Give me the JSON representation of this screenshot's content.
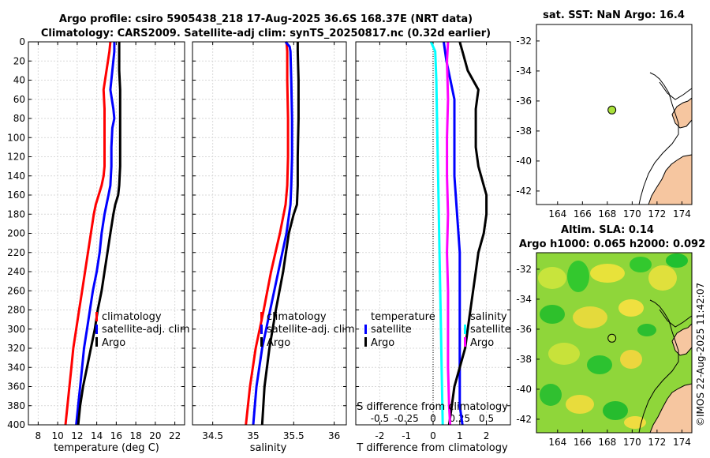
{
  "title": {
    "line1": "Argo profile: csiro 5905438_218 17-Aug-2025 36.6S 168.37E (NRT data)",
    "line2": "Climatology: CARS2009. Satellite-adj clim: synTS_20250817.nc (0.32d earlier)"
  },
  "depth_ticks": [
    0,
    20,
    40,
    60,
    80,
    100,
    120,
    140,
    160,
    180,
    200,
    220,
    240,
    260,
    280,
    300,
    320,
    340,
    360,
    380,
    400
  ],
  "depth_range": [
    0,
    400
  ],
  "chart_data": [
    {
      "type": "line",
      "name": "temperature",
      "xlabel": "temperature (deg C)",
      "xlim": [
        7,
        23
      ],
      "xticks": [
        8,
        10,
        12,
        14,
        16,
        18,
        20,
        22
      ],
      "ylim": [
        400,
        0
      ],
      "legend": [
        "climatology",
        "satellite-adj. clim",
        "Argo"
      ],
      "series": [
        {
          "name": "climatology",
          "color": "#ff0000",
          "depth": [
            0,
            10,
            30,
            50,
            70,
            90,
            110,
            130,
            140,
            150,
            160,
            170,
            180,
            200,
            220,
            240,
            260,
            280,
            300,
            320,
            340,
            360,
            380,
            400
          ],
          "values": [
            15.4,
            15.3,
            15.0,
            14.7,
            14.8,
            14.8,
            14.8,
            14.8,
            14.7,
            14.5,
            14.2,
            13.9,
            13.7,
            13.4,
            13.1,
            12.8,
            12.5,
            12.2,
            11.9,
            11.6,
            11.4,
            11.2,
            11.0,
            10.8
          ]
        },
        {
          "name": "satellite-adj. clim",
          "color": "#0000ff",
          "depth": [
            0,
            10,
            30,
            50,
            70,
            80,
            90,
            110,
            130,
            150,
            160,
            170,
            180,
            200,
            220,
            240,
            260,
            280,
            300,
            320,
            340,
            360,
            380,
            400
          ],
          "values": [
            15.8,
            15.8,
            15.6,
            15.4,
            15.7,
            15.8,
            15.6,
            15.5,
            15.5,
            15.4,
            15.2,
            15.0,
            14.8,
            14.5,
            14.3,
            14.0,
            13.6,
            13.3,
            13.0,
            12.7,
            12.5,
            12.3,
            12.1,
            11.9
          ]
        },
        {
          "name": "Argo",
          "color": "#000000",
          "depth": [
            0,
            10,
            30,
            50,
            70,
            90,
            110,
            130,
            150,
            160,
            170,
            180,
            200,
            220,
            240,
            260,
            280,
            300,
            320,
            340,
            360,
            380,
            400
          ],
          "values": [
            16.3,
            16.3,
            16.3,
            16.4,
            16.4,
            16.4,
            16.4,
            16.4,
            16.3,
            16.2,
            15.9,
            15.7,
            15.4,
            15.1,
            14.8,
            14.5,
            14.1,
            13.8,
            13.4,
            13.0,
            12.6,
            12.3,
            12.1
          ]
        }
      ]
    },
    {
      "type": "line",
      "name": "salinity",
      "xlabel": "salinity",
      "xlim": [
        34.25,
        36.15
      ],
      "xticks": [
        34.5,
        35,
        35.5,
        36
      ],
      "xtick_labels": [
        "34.5",
        "35",
        "35.5",
        "36"
      ],
      "ylim": [
        400,
        0
      ],
      "legend": [
        "climatology",
        "satellite-adj. clim",
        "Argo"
      ],
      "series": [
        {
          "name": "climatology",
          "color": "#ff0000",
          "depth": [
            0,
            10,
            40,
            80,
            120,
            150,
            170,
            200,
            240,
            280,
            320,
            360,
            400
          ],
          "values": [
            35.41,
            35.42,
            35.42,
            35.43,
            35.43,
            35.42,
            35.4,
            35.33,
            35.22,
            35.13,
            35.03,
            34.96,
            34.91
          ]
        },
        {
          "name": "satellite-adj. clim",
          "color": "#0000ff",
          "depth": [
            0,
            5,
            10,
            40,
            80,
            120,
            150,
            170,
            200,
            240,
            280,
            320,
            360,
            400
          ],
          "values": [
            35.4,
            35.45,
            35.46,
            35.47,
            35.48,
            35.48,
            35.47,
            35.46,
            35.41,
            35.31,
            35.21,
            35.11,
            35.04,
            35.0
          ]
        },
        {
          "name": "Argo",
          "color": "#000000",
          "depth": [
            0,
            10,
            40,
            80,
            120,
            150,
            170,
            180,
            200,
            240,
            280,
            320,
            360,
            400
          ],
          "values": [
            35.55,
            35.55,
            35.56,
            35.56,
            35.55,
            35.55,
            35.54,
            35.5,
            35.44,
            35.37,
            35.28,
            35.2,
            35.14,
            35.11
          ]
        }
      ]
    },
    {
      "type": "line",
      "name": "difference from climatology",
      "xlabel": "T difference from climatology",
      "xlim": [
        -2.9,
        2.9
      ],
      "xticks": [
        -2,
        -1,
        0,
        1,
        2
      ],
      "top_axis_label": "S difference from climatology",
      "top_xticks": [
        -0.5,
        -0.25,
        0,
        0.25,
        0.5
      ],
      "top_xtick_labels": [
        "-0.5",
        "-0.25",
        "0",
        "0.25",
        "0.5"
      ],
      "ylim": [
        400,
        0
      ],
      "legend_T": [
        "temperature",
        "satellite",
        "Argo"
      ],
      "legend_S": [
        "salinity",
        "satellite",
        "Argo"
      ],
      "series": [
        {
          "name": "temperature satellite",
          "color": "#0000ff",
          "depth": [
            0,
            20,
            60,
            100,
            140,
            180,
            220,
            260,
            300,
            340,
            380,
            400
          ],
          "values": [
            0.4,
            0.5,
            0.8,
            0.8,
            0.8,
            0.9,
            1.0,
            1.0,
            1.0,
            1.0,
            1.0,
            1.1
          ]
        },
        {
          "name": "temperature Argo",
          "color": "#000000",
          "depth": [
            0,
            10,
            30,
            50,
            70,
            90,
            110,
            130,
            150,
            160,
            170,
            180,
            200,
            220,
            240,
            260,
            280,
            300,
            320,
            340,
            360,
            380,
            400
          ],
          "values": [
            1.0,
            1.1,
            1.3,
            1.7,
            1.6,
            1.6,
            1.6,
            1.7,
            1.9,
            2.0,
            2.0,
            2.0,
            1.9,
            1.7,
            1.6,
            1.5,
            1.4,
            1.3,
            1.2,
            1.0,
            0.8,
            0.7,
            0.6
          ]
        },
        {
          "name": "salinity satellite",
          "color": "#00ffff",
          "depth": [
            0,
            10,
            40,
            100,
            160,
            220,
            280,
            340,
            400
          ],
          "values": [
            -0.02,
            0.02,
            0.03,
            0.04,
            0.05,
            0.06,
            0.07,
            0.08,
            0.09
          ]
        },
        {
          "name": "salinity Argo",
          "color": "#ff00ff",
          "depth": [
            0,
            20,
            60,
            100,
            140,
            180,
            220,
            260,
            300,
            340,
            380,
            400
          ],
          "values": [
            0.14,
            0.13,
            0.14,
            0.13,
            0.13,
            0.14,
            0.13,
            0.14,
            0.14,
            0.14,
            0.15,
            0.16
          ]
        }
      ]
    }
  ],
  "maps": {
    "sst": {
      "title": "sat. SST: NaN Argo: 16.4",
      "xticks": [
        164,
        166,
        168,
        170,
        172,
        174
      ],
      "yticks": [
        -32,
        -34,
        -36,
        -38,
        -40,
        -42
      ],
      "xlim": [
        162.3,
        174.8
      ],
      "ylim": [
        -30.9,
        -42.9
      ],
      "argo_lon": 168.37,
      "argo_lat": -36.6
    },
    "sla": {
      "title1": "Altim. SLA: 0.14",
      "title2": "Argo h1000: 0.065 h2000: 0.092",
      "xticks": [
        164,
        166,
        168,
        170,
        172,
        174
      ],
      "yticks": [
        -32,
        -34,
        -36,
        -38,
        -40,
        -42
      ],
      "xlim": [
        162.3,
        174.8
      ],
      "ylim": [
        -30.9,
        -42.9
      ],
      "argo_lon": 168.37,
      "argo_lat": -36.6
    }
  },
  "watermark": "©IMOS 22-Aug-2025 11:42:07",
  "colors": {
    "land": "#f6c6a0",
    "coast": "#000000",
    "marker": "#a8e03a",
    "sla_base": "#8fd63a"
  }
}
